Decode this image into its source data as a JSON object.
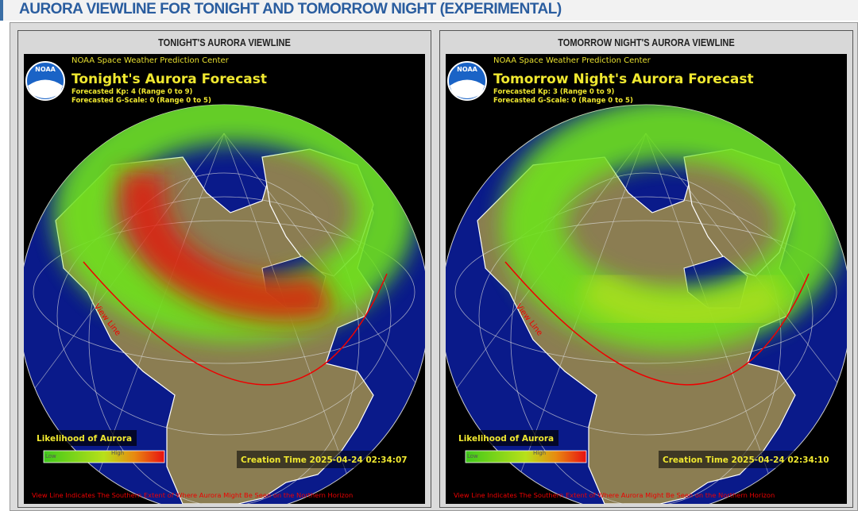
{
  "header": {
    "title": "AURORA VIEWLINE FOR TONIGHT AND TOMORROW NIGHT (EXPERIMENTAL)"
  },
  "panels": [
    {
      "title": "TONIGHT'S AURORA VIEWLINE",
      "map": {
        "agency": "NOAA Space Weather Prediction Center",
        "logo": "NOAA",
        "forecast_title": "Tonight's Aurora Forecast",
        "kp": "Forecasted Kp: 4 (Range 0 to 9)",
        "g_scale": "Forecasted G-Scale: 0 (Range 0 to 5)",
        "legend_title": "Likelihood of Aurora",
        "legend_low": "Low",
        "legend_high": "High",
        "creation_time": "Creation Time 2025-04-24 02:34:07",
        "view_line_label": "View Line",
        "footnote": "View Line Indicates The Southern Extent of Where Aurora Might Be Seen on the Northern Horizon"
      }
    },
    {
      "title": "TOMORROW NIGHT'S AURORA VIEWLINE",
      "map": {
        "agency": "NOAA Space Weather Prediction Center",
        "logo": "NOAA",
        "forecast_title": "Tomorrow Night's Aurora Forecast",
        "kp": "Forecasted Kp: 3 (Range 0 to 9)",
        "g_scale": "Forecasted G-Scale: 0 (Range 0 to 5)",
        "legend_title": "Likelihood of Aurora",
        "legend_low": "Low",
        "legend_high": "High",
        "creation_time": "Creation Time 2025-04-24 02:34:10",
        "view_line_label": "View Line",
        "footnote": "View Line Indicates The Southern Extent of Where Aurora Might Be Seen on the Northern Horizon"
      }
    }
  ]
}
